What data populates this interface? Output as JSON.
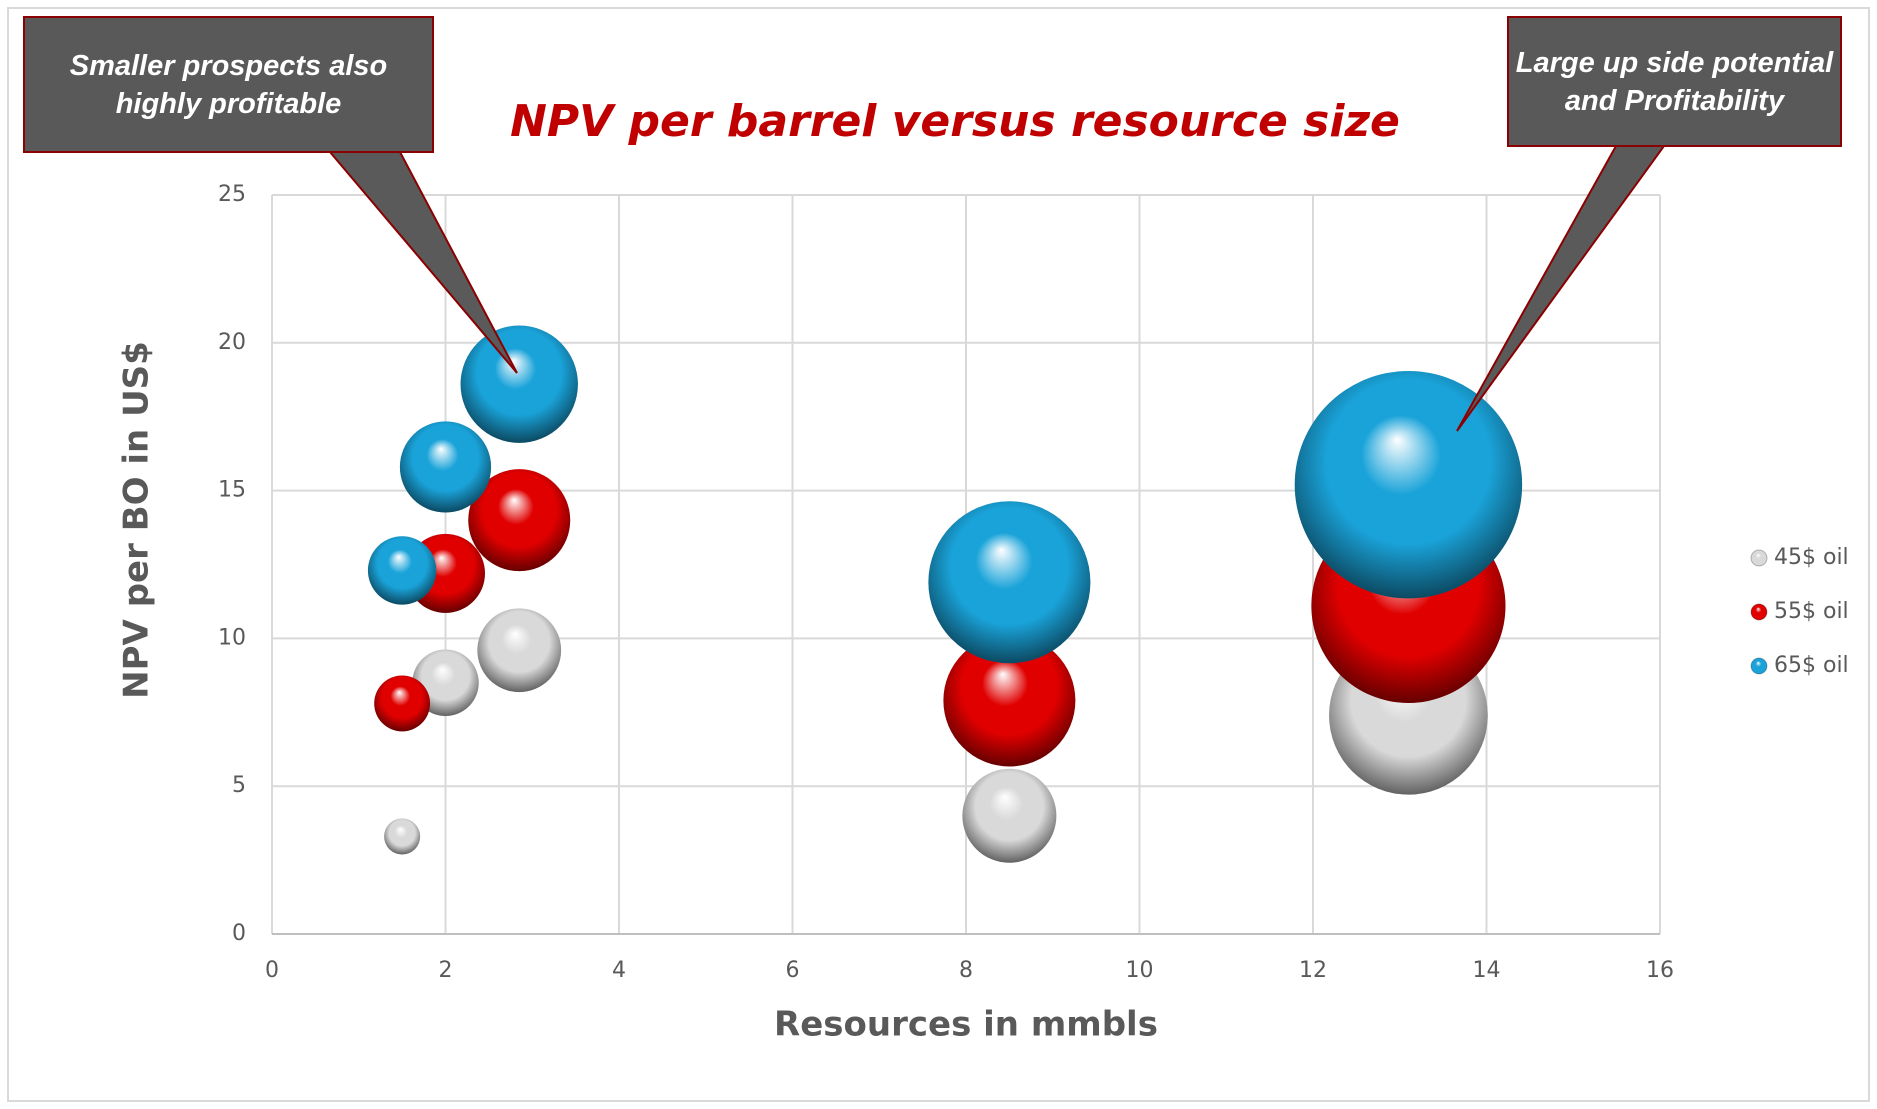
{
  "chart_data": {
    "type": "bubble",
    "title": "NPV per barrel versus resource size",
    "x_label": "Resources in mmbls",
    "y_label": "NPV per BO  in US$",
    "annotations": [
      "Smaller prospects also highly profitable",
      "Large up side potential and Profitability"
    ],
    "xlim": [
      0,
      16
    ],
    "xticks": [
      0,
      2,
      4,
      6,
      8,
      10,
      12,
      14,
      16
    ],
    "ylim": [
      0,
      25
    ],
    "yticks": [
      0,
      5,
      10,
      15,
      20,
      25
    ],
    "grid": true,
    "legend": "right",
    "series": [
      {
        "name": "45$ oil",
        "color": "#d9d9d9",
        "x": [
          1.5,
          2,
          2.85,
          8.5,
          13.1
        ],
        "values": [
          3.3,
          8.5,
          9.6,
          4.0,
          7.4
        ],
        "sizes": [
          5,
          17,
          27,
          34,
          97
        ]
      },
      {
        "name": "55$ oil",
        "color": "#e00000",
        "x": [
          1.5,
          2,
          2.85,
          8.5,
          13.1
        ],
        "values": [
          7.8,
          12.2,
          14.0,
          7.9,
          11.1
        ],
        "sizes": [
          12,
          24,
          40,
          67,
          145
        ]
      },
      {
        "name": "65$ oil",
        "color": "#1aa3d9",
        "x": [
          1.5,
          2,
          2.85,
          8.5,
          13.1
        ],
        "values": [
          12.3,
          15.8,
          18.6,
          11.9,
          15.2
        ],
        "sizes": [
          18,
          32,
          53,
          101,
          199
        ]
      }
    ]
  }
}
